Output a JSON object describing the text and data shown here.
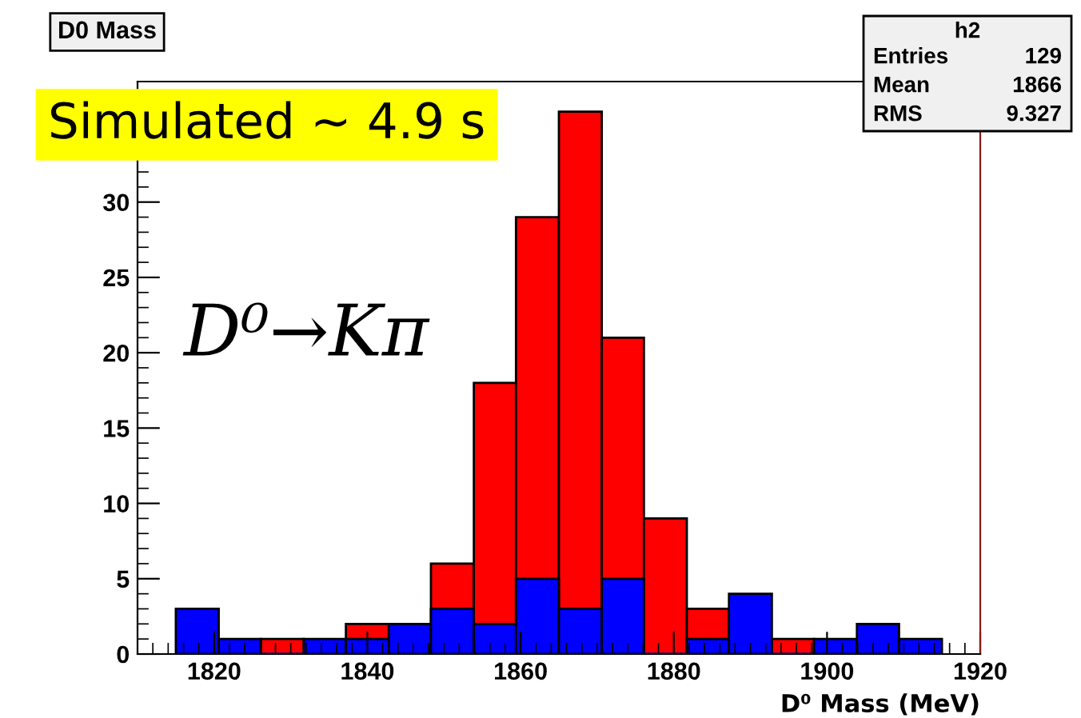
{
  "chart_data": {
    "type": "histogram",
    "title": "D0 Mass",
    "xlabel": "D⁰ Mass (MeV)",
    "bins": [
      1815,
      1820.6,
      1826.1,
      1831.7,
      1837.2,
      1842.8,
      1848.3,
      1853.9,
      1859.4,
      1865,
      1870.6,
      1876.1,
      1881.7,
      1887.2,
      1892.8,
      1898.3,
      1903.9,
      1909.4,
      1915
    ],
    "series": [
      {
        "color": "#ff0000",
        "values": [
          null,
          null,
          1,
          null,
          2,
          null,
          6,
          18,
          29,
          36,
          21,
          9,
          3,
          null,
          1,
          null,
          null,
          null
        ]
      },
      {
        "color": "#0000ff",
        "values": [
          3,
          1,
          0,
          1,
          1,
          2,
          3,
          2,
          5,
          3,
          5,
          0,
          1,
          4,
          0,
          1,
          2,
          1
        ]
      }
    ],
    "xlim": [
      1810,
      1920
    ],
    "xticks": [
      1820,
      1840,
      1860,
      1880,
      1900,
      1920
    ],
    "ylim": [
      0,
      38
    ],
    "yticks": [
      0,
      5,
      10,
      15,
      20,
      25,
      30
    ],
    "annotations": [
      "Simulated ∼ 4.9 s",
      "D⁰→Kπ",
      "h2",
      "Entries",
      "129",
      "Mean",
      "1866",
      "RMS",
      "9.327"
    ],
    "grid": false
  }
}
